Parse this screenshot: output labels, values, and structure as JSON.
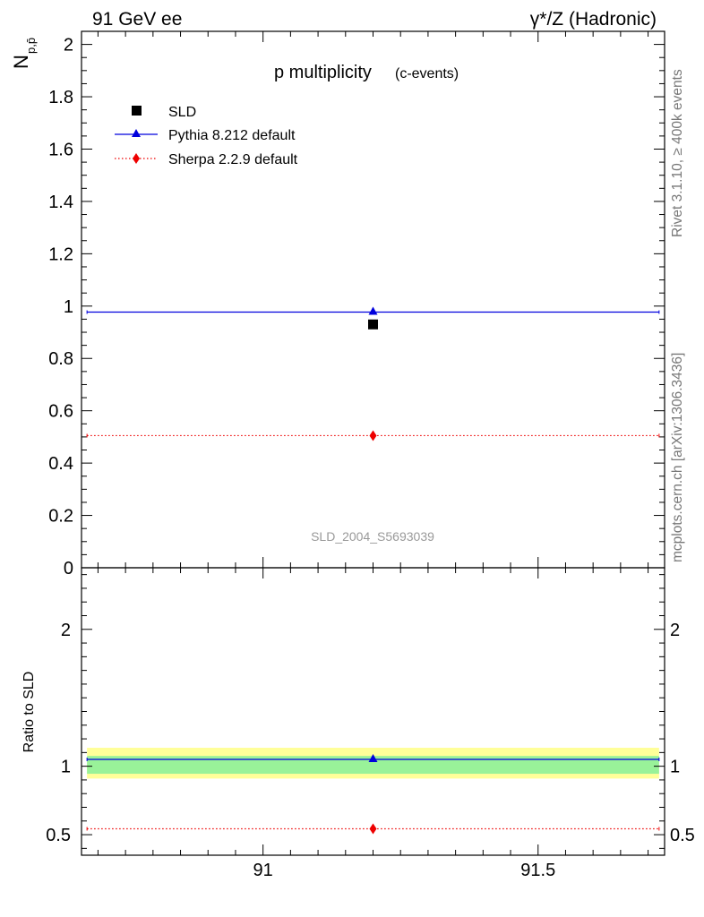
{
  "header": {
    "left": "91 GeV ee",
    "right": "γ*/Z (Hadronic)"
  },
  "side": {
    "rivet": "Rivet 3.1.10, ≥ 400k events",
    "mcplots": "mcplots.cern.ch [arXiv:1306.3436]"
  },
  "colors": {
    "data": "#000000",
    "pythia": "#0000dd",
    "sherpa": "#ee0000",
    "band_inner": "#99f299",
    "band_outer": "#ffff99"
  },
  "chart_data": [
    {
      "type": "scatter",
      "title": "p multiplicity",
      "subtitle": "(c-events)",
      "ylabel": "N",
      "ylabel_sub": "p,p̄",
      "watermark": "SLD_2004_S5693039",
      "xlim": [
        90.67,
        91.73
      ],
      "ylim": [
        0,
        2.05
      ],
      "x_major_ticks": [
        91,
        91.5
      ],
      "y_major_ticks": [
        0,
        0.2,
        0.4,
        0.6,
        0.8,
        1,
        1.2,
        1.4,
        1.6,
        1.8,
        2
      ],
      "y_tick_labels": [
        "0",
        "0.2",
        "0.4",
        "0.6",
        "0.8",
        "1",
        "1.2",
        "1.4",
        "1.6",
        "1.8",
        "2"
      ],
      "legend": [
        "SLD",
        "Pythia 8.212 default",
        "Sherpa 2.2.9 default"
      ],
      "legend_position": "top-left",
      "series": [
        {
          "name": "SLD",
          "marker": "square",
          "x": [
            91.2
          ],
          "y": [
            0.93
          ]
        },
        {
          "name": "Pythia 8.212 default",
          "marker": "triangle",
          "line": "solid",
          "x": [
            91.2
          ],
          "y": [
            0.977
          ],
          "xrange": [
            90.68,
            91.72
          ]
        },
        {
          "name": "Sherpa 2.2.9 default",
          "marker": "diamond",
          "line": "dotted",
          "x": [
            91.2
          ],
          "y": [
            0.505
          ],
          "xrange": [
            90.68,
            91.72
          ]
        }
      ]
    },
    {
      "type": "scatter",
      "ylabel": "Ratio to SLD",
      "xlim": [
        90.67,
        91.73
      ],
      "ylim": [
        0.35,
        2.45
      ],
      "x_tick_labels": [
        "91",
        "91.5"
      ],
      "x_major_ticks": [
        91,
        91.5
      ],
      "y_major_ticks": [
        0.5,
        1,
        2
      ],
      "y_tick_labels": [
        "0.5",
        "1",
        "2"
      ],
      "bands": [
        {
          "name": "outer",
          "low": 0.91,
          "high": 1.135
        },
        {
          "name": "inner",
          "low": 0.945,
          "high": 1.075
        }
      ],
      "series": [
        {
          "name": "Pythia 8.212 default",
          "marker": "triangle",
          "line": "solid",
          "x": [
            91.2
          ],
          "y": [
            1.05
          ],
          "xrange": [
            90.68,
            91.72
          ]
        },
        {
          "name": "Sherpa 2.2.9 default",
          "marker": "diamond",
          "line": "dotted",
          "x": [
            91.2
          ],
          "y": [
            0.543
          ],
          "xrange": [
            90.68,
            91.72
          ]
        }
      ]
    }
  ]
}
